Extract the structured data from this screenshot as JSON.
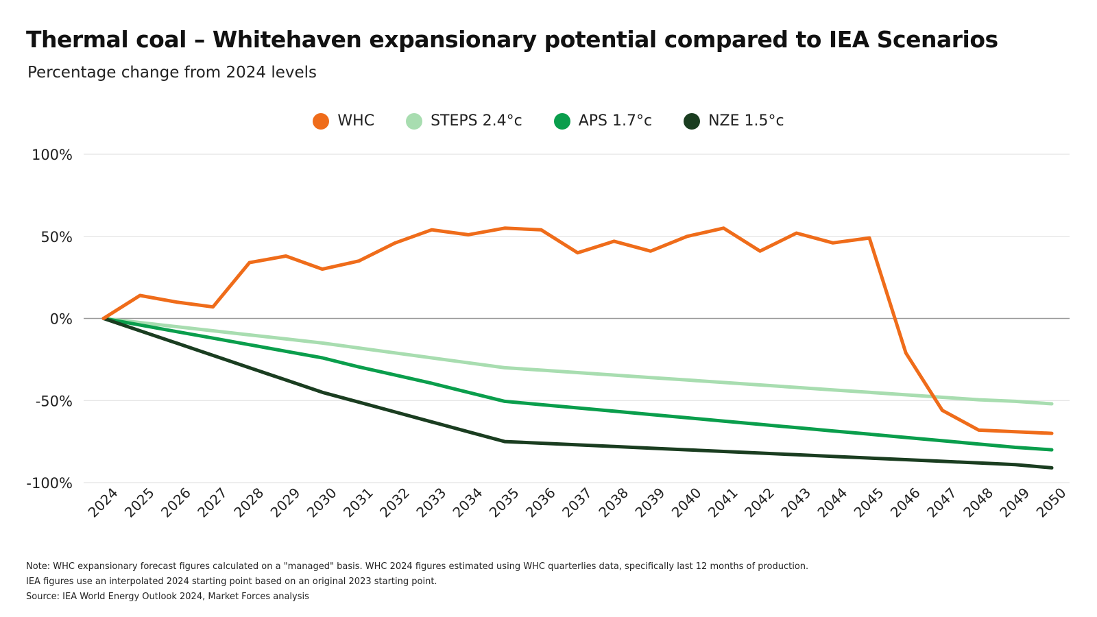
{
  "header": {
    "title": "Thermal coal – Whitehaven expansionary potential compared to IEA Scenarios",
    "subtitle": "Percentage change from 2024 levels"
  },
  "chart_data": {
    "type": "line",
    "title": "Thermal coal – Whitehaven expansionary potential compared to IEA Scenarios",
    "subtitle": "Percentage change from 2024 levels",
    "xlabel": "",
    "ylabel": "",
    "categories": [
      "2024",
      "2025",
      "2026",
      "2027",
      "2028",
      "2029",
      "2030",
      "2031",
      "2032",
      "2033",
      "2034",
      "2035",
      "2036",
      "2037",
      "2038",
      "2039",
      "2040",
      "2041",
      "2042",
      "2043",
      "2044",
      "2045",
      "2046",
      "2047",
      "2048",
      "2049",
      "2050"
    ],
    "ylim": [
      -100,
      100
    ],
    "y_ticks": [
      100,
      50,
      0,
      -50,
      -100
    ],
    "y_tick_labels": [
      "100%",
      "50%",
      "0%",
      "-50%",
      "-100%"
    ],
    "grid": true,
    "legend_position": "top-center",
    "series": [
      {
        "name": "WHC",
        "color": "#ef6c1a",
        "values": [
          0,
          14,
          10,
          7,
          34,
          38,
          30,
          35,
          46,
          54,
          51,
          55,
          54,
          40,
          47,
          41,
          50,
          55,
          41,
          52,
          46,
          49,
          -21,
          -56,
          -68,
          -69,
          -70
        ]
      },
      {
        "name": "STEPS 2.4°c",
        "color": "#a8ddb0",
        "values": [
          0,
          -2.5,
          -5,
          -7.5,
          -10,
          -12.5,
          -15,
          -18,
          -21,
          -24,
          -27,
          -30,
          -31.5,
          -33,
          -34.5,
          -36,
          -37.5,
          -39,
          -40.5,
          -42,
          -43.5,
          -45,
          -46.5,
          -48,
          -49.5,
          -50.5,
          -52
        ]
      },
      {
        "name": "APS 1.7°c",
        "color": "#0a9e4c",
        "values": [
          0,
          -4,
          -8,
          -12,
          -16,
          -20,
          -24,
          -29.5,
          -34.5,
          -39.5,
          -45,
          -50.5,
          -52.5,
          -54.5,
          -56.5,
          -58.5,
          -60.5,
          -62.5,
          -64.5,
          -66.5,
          -68.5,
          -70.5,
          -72.5,
          -74.5,
          -76.5,
          -78.5,
          -80
        ]
      },
      {
        "name": "NZE 1.5°c",
        "color": "#1a3d20",
        "values": [
          0,
          -7.5,
          -15,
          -22.5,
          -30,
          -37.5,
          -45,
          -51,
          -57,
          -63,
          -69,
          -75,
          -76,
          -77,
          -78,
          -79,
          -80,
          -81,
          -82,
          -83,
          -84,
          -85,
          -86,
          -87,
          -88,
          -89,
          -91
        ]
      }
    ]
  },
  "notes": {
    "line1": "Note: WHC expansionary forecast figures calculated on a \"managed\" basis. WHC 2024 figures estimated using WHC quarterlies data, specifically last 12 months of production.",
    "line2": "IEA figures use an interpolated 2024 starting point based on an original 2023 starting point.",
    "line3": "Source: IEA World Energy Outlook 2024, Market Forces analysis"
  }
}
